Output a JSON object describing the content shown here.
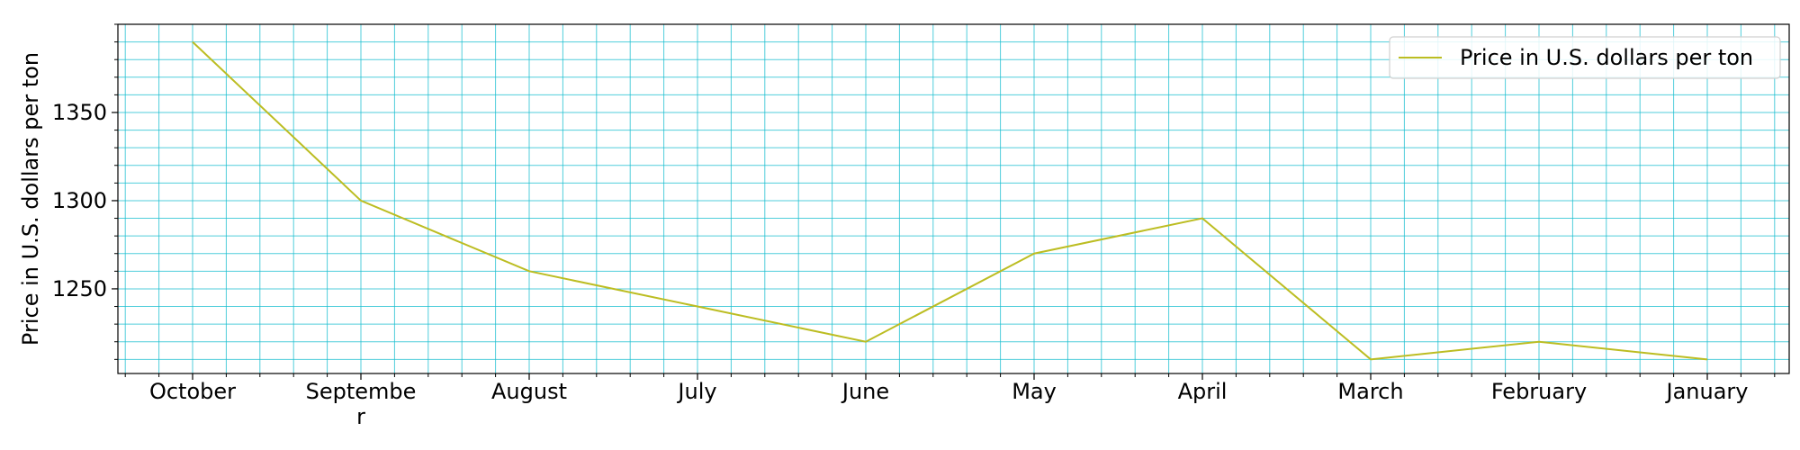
{
  "chart_data": {
    "type": "line",
    "title": "",
    "xlabel": "",
    "ylabel": "Price in U.S. dollars per ton",
    "categories": [
      "October",
      "September",
      "August",
      "July",
      "June",
      "May",
      "April",
      "March",
      "February",
      "January"
    ],
    "category_display": [
      [
        "October"
      ],
      [
        "Septembe",
        "r"
      ],
      [
        "August"
      ],
      [
        "July"
      ],
      [
        "June"
      ],
      [
        "May"
      ],
      [
        "April"
      ],
      [
        "March"
      ],
      [
        "February"
      ],
      [
        "January"
      ]
    ],
    "series": [
      {
        "name": "Price in U.S. dollars per ton",
        "values": [
          1390,
          1300,
          1260,
          1240,
          1220,
          1270,
          1290,
          1210,
          1220,
          1210
        ],
        "color": "#bcbd22"
      }
    ],
    "ylim": [
      1202,
      1400
    ],
    "yticks": [
      1250,
      1300,
      1350
    ],
    "grid": true,
    "grid_color": "#17becf",
    "legend": "top-right"
  }
}
